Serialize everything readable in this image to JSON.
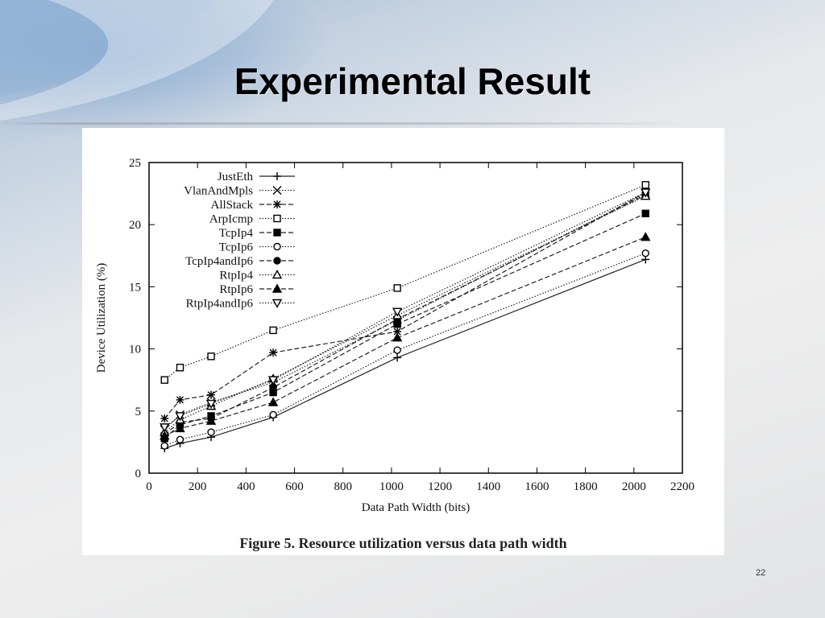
{
  "slide": {
    "title": "Experimental Result",
    "slide_number": "22",
    "caption": "Figure 5. Resource utilization versus data path width"
  },
  "chart_data": {
    "type": "line",
    "xlabel": "Data Path Width (bits)",
    "ylabel": "Device Utilization (%)",
    "xlim": [
      0,
      2200
    ],
    "ylim": [
      0,
      25
    ],
    "xticks": [
      0,
      200,
      400,
      600,
      800,
      1000,
      1200,
      1400,
      1600,
      1800,
      2000,
      2200
    ],
    "yticks": [
      0,
      5,
      10,
      15,
      20,
      25
    ],
    "legend_position": "top-left",
    "x": [
      64,
      128,
      256,
      512,
      1024,
      2048
    ],
    "series": [
      {
        "name": "JustEth",
        "marker": "plus",
        "dash": "solid",
        "values": [
          2.0,
          2.4,
          2.9,
          4.5,
          9.3,
          17.2
        ]
      },
      {
        "name": "VlanAndMpls",
        "marker": "x",
        "dash": "dotted",
        "values": [
          3.5,
          4.7,
          5.7,
          7.3,
          12.3,
          22.5
        ]
      },
      {
        "name": "AllStack",
        "marker": "star",
        "dash": "dashed",
        "values": [
          4.4,
          5.9,
          6.3,
          9.7,
          11.4,
          22.6
        ]
      },
      {
        "name": "ArpIcmp",
        "marker": "square-open",
        "dash": "dotted",
        "values": [
          7.5,
          8.5,
          9.4,
          11.5,
          14.9,
          23.2
        ]
      },
      {
        "name": "TcpIp4",
        "marker": "square-filled",
        "dash": "dashed",
        "values": [
          2.8,
          3.9,
          4.6,
          6.5,
          12.0,
          20.9
        ]
      },
      {
        "name": "TcpIp6",
        "marker": "circle-open",
        "dash": "dotted",
        "values": [
          2.2,
          2.7,
          3.3,
          4.7,
          9.9,
          17.7
        ]
      },
      {
        "name": "TcpIp4andIp6",
        "marker": "circle-filled",
        "dash": "dashed",
        "values": [
          3.1,
          4.1,
          4.4,
          6.9,
          12.4,
          22.4
        ]
      },
      {
        "name": "RtpIp4",
        "marker": "triangle-open",
        "dash": "dotted",
        "values": [
          3.3,
          4.3,
          5.4,
          7.6,
          12.7,
          22.3
        ]
      },
      {
        "name": "RtpIp6",
        "marker": "triangle-filled",
        "dash": "dashed",
        "values": [
          3.0,
          3.6,
          4.2,
          5.7,
          10.9,
          19.0
        ]
      },
      {
        "name": "RtpIp4andIp6",
        "marker": "triangle-down-open",
        "dash": "dotted",
        "values": [
          3.7,
          4.6,
          5.6,
          7.5,
          13.0,
          22.6
        ]
      }
    ]
  }
}
